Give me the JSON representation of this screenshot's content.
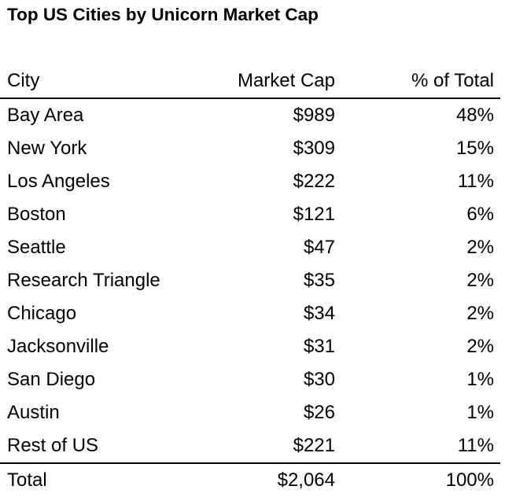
{
  "chart_data": {
    "type": "table",
    "title": "Top US Cities by Unicorn Market Cap",
    "columns": [
      "City",
      "Market Cap",
      "% of Total"
    ],
    "rows": [
      {
        "city": "Bay Area",
        "market_cap": "$989",
        "pct": "48%"
      },
      {
        "city": "New York",
        "market_cap": "$309",
        "pct": "15%"
      },
      {
        "city": "Los Angeles",
        "market_cap": "$222",
        "pct": "11%"
      },
      {
        "city": "Boston",
        "market_cap": "$121",
        "pct": "6%"
      },
      {
        "city": "Seattle",
        "market_cap": "$47",
        "pct": "2%"
      },
      {
        "city": "Research Triangle",
        "market_cap": "$35",
        "pct": "2%"
      },
      {
        "city": "Chicago",
        "market_cap": "$34",
        "pct": "2%"
      },
      {
        "city": "Jacksonville",
        "market_cap": "$31",
        "pct": "2%"
      },
      {
        "city": "San Diego",
        "market_cap": "$30",
        "pct": "1%"
      },
      {
        "city": "Austin",
        "market_cap": "$26",
        "pct": "1%"
      },
      {
        "city": "Rest of US",
        "market_cap": "$221",
        "pct": "11%"
      }
    ],
    "total": {
      "city": "Total",
      "market_cap": "$2,064",
      "pct": "100%"
    }
  }
}
